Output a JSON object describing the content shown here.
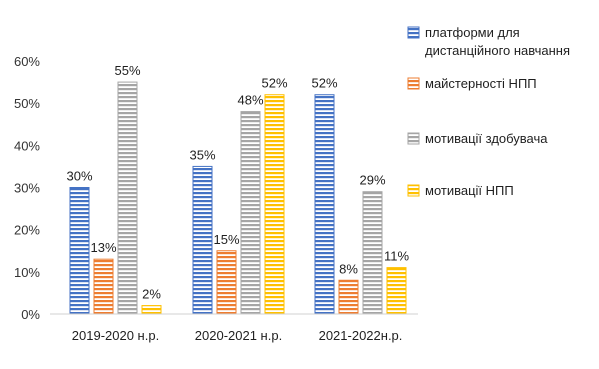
{
  "chart_data": {
    "type": "bar",
    "categories": [
      "2019-2020 н.р.",
      "2020-2021 н.р.",
      "2021-2022н.р."
    ],
    "series": [
      {
        "name": "платформи для дистанційного навчання",
        "legend_lines": [
          "платформи для",
          "дистанційного навчання"
        ],
        "values": [
          30,
          35,
          52
        ],
        "color": "#4472C4"
      },
      {
        "name": "майстерності НПП",
        "legend_lines": [
          "майстерності НПП"
        ],
        "values": [
          13,
          15,
          8
        ],
        "color": "#ED7D31"
      },
      {
        "name": "мотивації здобувача",
        "legend_lines": [
          "мотивації здобувача"
        ],
        "values": [
          55,
          48,
          29
        ],
        "color": "#A5A5A5"
      },
      {
        "name": "мотивації НПП",
        "legend_lines": [
          "мотивації НПП"
        ],
        "values": [
          2,
          52,
          11
        ],
        "color": "#FFC000"
      }
    ],
    "ylim": [
      0,
      60
    ],
    "yticks": [
      "0%",
      "10%",
      "20%",
      "30%",
      "40%",
      "50%",
      "60%"
    ],
    "value_suffix": "%",
    "bar_pattern": "horizontal-stripes",
    "grid": false,
    "legend_position": "right"
  }
}
